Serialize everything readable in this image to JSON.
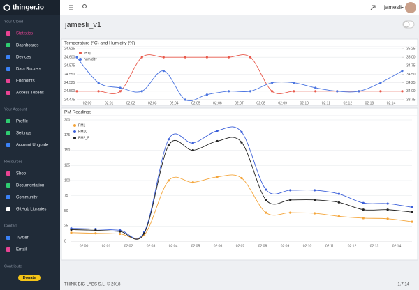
{
  "sidebar": {
    "brand": "thinger.io",
    "sections": [
      {
        "title": "Your Cloud",
        "items": [
          "Statistics",
          "Dashboards",
          "Devices",
          "Data Buckets",
          "Endpoints",
          "Access Tokens"
        ]
      },
      {
        "title": "Your Account",
        "items": [
          "Profile",
          "Settings",
          "Account Upgrade"
        ]
      },
      {
        "title": "Resources",
        "items": [
          "Shop",
          "Documentation",
          "Community",
          "GitHub Libraries"
        ]
      },
      {
        "title": "Contact",
        "items": [
          "Twitter",
          "Email"
        ]
      },
      {
        "title": "Contribute",
        "items": []
      }
    ],
    "donate": "Donate"
  },
  "topbar": {
    "user": "jamesli"
  },
  "dashboard": {
    "title": "jamesli_v1"
  },
  "chart_data": [
    {
      "type": "line",
      "title": "Temperature (ºC) and Humidity (%)",
      "xticks": [
        "02:00",
        "02:01",
        "02:02",
        "02:03",
        "02:04",
        "02:05",
        "02:06",
        "02:07",
        "02:08",
        "02:09",
        "02:10",
        "02:11",
        "02:12",
        "02:13",
        "02:14"
      ],
      "ylim": [
        24.475,
        24.625
      ],
      "yticks": [
        24.475,
        {
          "value": 24.5,
          "label": "24.500"
        },
        24.525,
        {
          "value": 24.55,
          "label": "24.550"
        },
        24.575,
        {
          "value": 24.6,
          "label": "24.600"
        },
        24.625
      ],
      "y2lim": [
        33.75,
        35.25
      ],
      "y2ticks": [
        {
          "value": 33.75,
          "label": "33.75"
        },
        {
          "value": 34,
          "label": "34.00"
        },
        {
          "value": 34.25,
          "label": "34.25"
        },
        {
          "value": 34.5,
          "label": "34.50"
        },
        {
          "value": 34.75,
          "label": "34.75"
        },
        {
          "value": 35,
          "label": "35.00"
        },
        {
          "value": 35.25,
          "label": "35.25"
        }
      ],
      "grid": true,
      "series": [
        {
          "name": "temp",
          "color": "#e8584a",
          "values": [
            24.5,
            24.5,
            24.5,
            24.6,
            24.6,
            24.6,
            24.6,
            24.6,
            24.6,
            24.5,
            24.5,
            24.5,
            24.5,
            24.5,
            24.5,
            24.5
          ]
        },
        {
          "name": "humidity",
          "color": "#4a74e0",
          "axis": "y2",
          "values": [
            35.0,
            34.25,
            34.1,
            34.0,
            34.6,
            33.75,
            33.9,
            34.0,
            34.0,
            34.25,
            34.25,
            34.1,
            34.0,
            34.0,
            34.25,
            34.6
          ]
        }
      ]
    },
    {
      "type": "line",
      "title": "PM Readings",
      "xticks": [
        "02:00",
        "02:01",
        "02:02",
        "02:03",
        "02:04",
        "02:05",
        "02:06",
        "02:07",
        "02:08",
        "02:09",
        "02:10",
        "02:11",
        "02:12",
        "02:13",
        "02:14"
      ],
      "ylim": [
        0,
        200
      ],
      "yticks": [
        0,
        25,
        50,
        75,
        100,
        125,
        150,
        175,
        200
      ],
      "grid": true,
      "series": [
        {
          "name": "PM1",
          "color": "#f4a53a",
          "values": [
            14,
            13,
            12,
            10,
            100,
            97,
            106,
            104,
            47,
            47,
            46,
            41,
            38,
            37,
            32
          ]
        },
        {
          "name": "PM10",
          "color": "#3b5fd9",
          "values": [
            21,
            20,
            18,
            15,
            168,
            162,
            182,
            180,
            85,
            84,
            84,
            78,
            63,
            62,
            56
          ]
        },
        {
          "name": "PM2_5",
          "color": "#222222",
          "values": [
            19,
            18,
            16,
            13,
            158,
            150,
            165,
            163,
            68,
            68,
            68,
            64,
            52,
            52,
            48
          ]
        }
      ]
    }
  ],
  "footer": {
    "copyright": "THINK BIG LABS S.L. © 2018",
    "version": "1.7.14"
  }
}
